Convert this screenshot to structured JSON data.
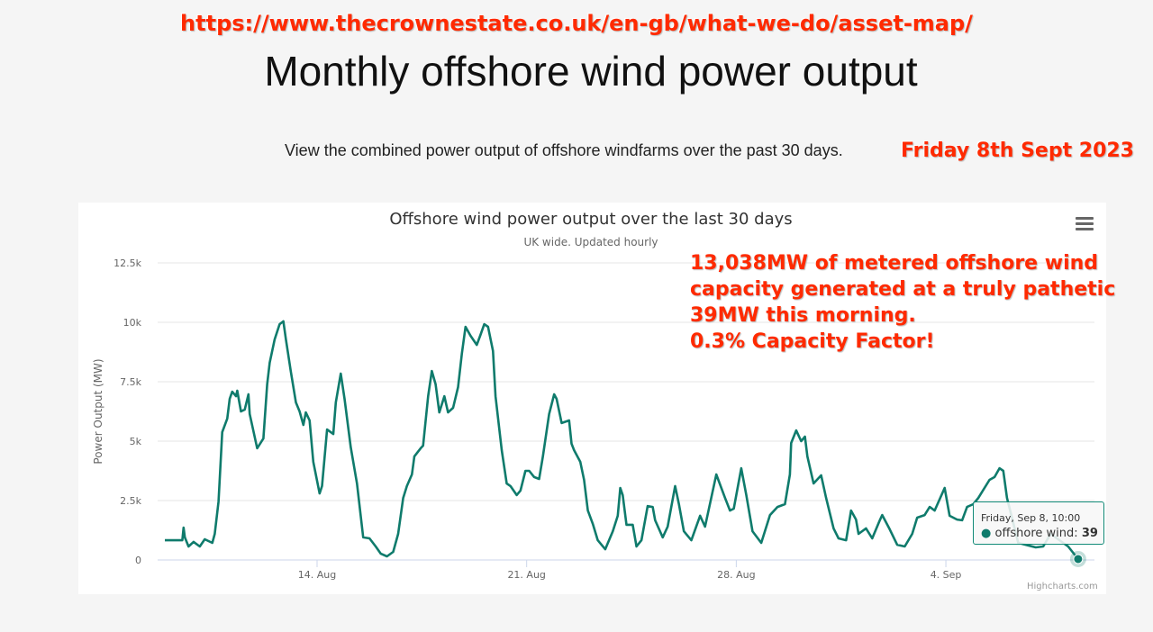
{
  "annotations": {
    "url": "https://www.thecrownestate.co.uk/en-gb/what-we-do/asset-map/",
    "date": "Friday 8th Sept 2023",
    "comment_lines": [
      "13,038MW of metered offshore wind",
      "capacity generated at a truly pathetic",
      "39MW this morning.",
      "0.3% Capacity Factor!"
    ],
    "color": "#ff2a00"
  },
  "page": {
    "heading": "Monthly offshore wind power output",
    "subheading": "View the combined power output of offshore windfarms over the past 30 days."
  },
  "chart": {
    "menu_icon": "hamburger-menu-icon",
    "credits": "Highcharts.com",
    "tooltip": {
      "date": "Friday, Sep 8, 10:00",
      "series": "offshore wind",
      "value": "39"
    }
  },
  "chart_data": {
    "type": "line",
    "title": "Offshore wind power output over the last 30 days",
    "subtitle": "UK wide. Updated hourly",
    "ylabel": "Power Output (MW)",
    "xlabel": "",
    "ylim": [
      0,
      12500
    ],
    "yticks": [
      0,
      2500,
      5000,
      7500,
      10000,
      12500
    ],
    "ytick_labels": [
      "0",
      "2.5k",
      "5k",
      "7.5k",
      "10k",
      "12.5k"
    ],
    "xticks": [
      "2023-08-14T00:00",
      "2023-08-21T00:00",
      "2023-08-28T00:00",
      "2023-09-04T00:00"
    ],
    "xtick_labels": [
      "14. Aug",
      "21. Aug",
      "28. Aug",
      "4. Sep"
    ],
    "grid": true,
    "legend": "none",
    "line_color": "#0f7b6c",
    "series": [
      {
        "name": "offshore wind",
        "points": [
          [
            "2023-08-08T22:00",
            830
          ],
          [
            "2023-08-09T12:00",
            830
          ],
          [
            "2023-08-09T13:00",
            1360
          ],
          [
            "2023-08-09T14:00",
            950
          ],
          [
            "2023-08-09T17:00",
            570
          ],
          [
            "2023-08-09T21:00",
            760
          ],
          [
            "2023-08-10T02:00",
            570
          ],
          [
            "2023-08-10T06:00",
            870
          ],
          [
            "2023-08-10T12:00",
            720
          ],
          [
            "2023-08-10T14:00",
            1100
          ],
          [
            "2023-08-10T17:00",
            2460
          ],
          [
            "2023-08-10T20:00",
            5380
          ],
          [
            "2023-08-11T00:00",
            5950
          ],
          [
            "2023-08-11T02:00",
            6780
          ],
          [
            "2023-08-11T04:00",
            7080
          ],
          [
            "2023-08-11T07:00",
            6890
          ],
          [
            "2023-08-11T08:00",
            7120
          ],
          [
            "2023-08-11T11:00",
            6250
          ],
          [
            "2023-08-11T14:00",
            6330
          ],
          [
            "2023-08-11T17:00",
            6970
          ],
          [
            "2023-08-11T18:00",
            6140
          ],
          [
            "2023-08-12T00:00",
            4700
          ],
          [
            "2023-08-12T05:00",
            5110
          ],
          [
            "2023-08-12T08:00",
            7390
          ],
          [
            "2023-08-12T10:00",
            8300
          ],
          [
            "2023-08-12T14:00",
            9280
          ],
          [
            "2023-08-12T18:00",
            9920
          ],
          [
            "2023-08-12T21:00",
            10040
          ],
          [
            "2023-08-12T23:00",
            9280
          ],
          [
            "2023-08-13T03:00",
            7920
          ],
          [
            "2023-08-13T07:00",
            6630
          ],
          [
            "2023-08-13T10:00",
            6250
          ],
          [
            "2023-08-13T13:00",
            5680
          ],
          [
            "2023-08-13T15:00",
            6210
          ],
          [
            "2023-08-13T18:00",
            5870
          ],
          [
            "2023-08-13T21:00",
            4130
          ],
          [
            "2023-08-14T02:00",
            2800
          ],
          [
            "2023-08-14T04:00",
            3110
          ],
          [
            "2023-08-14T08:00",
            5490
          ],
          [
            "2023-08-14T13:00",
            5300
          ],
          [
            "2023-08-14T15:00",
            6630
          ],
          [
            "2023-08-14T19:00",
            7840
          ],
          [
            "2023-08-14T22:00",
            6780
          ],
          [
            "2023-08-15T03:00",
            4740
          ],
          [
            "2023-08-15T08:00",
            3220
          ],
          [
            "2023-08-15T13:00",
            950
          ],
          [
            "2023-08-15T18:00",
            910
          ],
          [
            "2023-08-15T23:00",
            570
          ],
          [
            "2023-08-16T03:00",
            270
          ],
          [
            "2023-08-16T08:00",
            150
          ],
          [
            "2023-08-16T13:00",
            340
          ],
          [
            "2023-08-16T17:00",
            1100
          ],
          [
            "2023-08-16T21:00",
            2610
          ],
          [
            "2023-08-17T00:00",
            3110
          ],
          [
            "2023-08-17T04:00",
            3600
          ],
          [
            "2023-08-17T06:00",
            4360
          ],
          [
            "2023-08-17T11:00",
            4700
          ],
          [
            "2023-08-17T13:00",
            4810
          ],
          [
            "2023-08-17T17:00",
            6890
          ],
          [
            "2023-08-17T20:00",
            7950
          ],
          [
            "2023-08-17T23:00",
            7390
          ],
          [
            "2023-08-18T02:00",
            6210
          ],
          [
            "2023-08-18T06:00",
            6890
          ],
          [
            "2023-08-18T09:00",
            6210
          ],
          [
            "2023-08-18T13:00",
            6400
          ],
          [
            "2023-08-18T17:00",
            7270
          ],
          [
            "2023-08-18T20:00",
            8670
          ],
          [
            "2023-08-18T23:00",
            9810
          ],
          [
            "2023-08-19T03:00",
            9430
          ],
          [
            "2023-08-19T08:00",
            9050
          ],
          [
            "2023-08-19T11:00",
            9470
          ],
          [
            "2023-08-19T14:00",
            9920
          ],
          [
            "2023-08-19T17:00",
            9810
          ],
          [
            "2023-08-19T21:00",
            8790
          ],
          [
            "2023-08-19T23:00",
            6890
          ],
          [
            "2023-08-20T04:00",
            4620
          ],
          [
            "2023-08-20T08:00",
            3220
          ],
          [
            "2023-08-20T11:00",
            3110
          ],
          [
            "2023-08-20T16:00",
            2730
          ],
          [
            "2023-08-20T19:00",
            2920
          ],
          [
            "2023-08-20T23:00",
            3750
          ],
          [
            "2023-08-21T02:00",
            3750
          ],
          [
            "2023-08-21T06:00",
            3490
          ],
          [
            "2023-08-21T10:00",
            3410
          ],
          [
            "2023-08-21T13:00",
            4360
          ],
          [
            "2023-08-21T18:00",
            6140
          ],
          [
            "2023-08-21T22:00",
            6970
          ],
          [
            "2023-08-22T00:00",
            6780
          ],
          [
            "2023-08-22T04:00",
            5760
          ],
          [
            "2023-08-22T10:00",
            5870
          ],
          [
            "2023-08-22T12:00",
            4890
          ],
          [
            "2023-08-22T14:00",
            4620
          ],
          [
            "2023-08-22T19:00",
            4130
          ],
          [
            "2023-08-22T22:00",
            3370
          ],
          [
            "2023-08-23T01:00",
            2080
          ],
          [
            "2023-08-23T05:00",
            1520
          ],
          [
            "2023-08-23T09:00",
            830
          ],
          [
            "2023-08-23T15:00",
            450
          ],
          [
            "2023-08-23T21:00",
            1210
          ],
          [
            "2023-08-24T01:00",
            1860
          ],
          [
            "2023-08-24T03:00",
            3030
          ],
          [
            "2023-08-24T05:00",
            2730
          ],
          [
            "2023-08-24T08:00",
            1480
          ],
          [
            "2023-08-24T13:00",
            1480
          ],
          [
            "2023-08-24T16:00",
            570
          ],
          [
            "2023-08-24T20:00",
            830
          ],
          [
            "2023-08-25T01:00",
            2270
          ],
          [
            "2023-08-25T05:00",
            2230
          ],
          [
            "2023-08-25T07:00",
            1670
          ],
          [
            "2023-08-25T13:00",
            950
          ],
          [
            "2023-08-25T17:00",
            1400
          ],
          [
            "2023-08-25T23:00",
            3110
          ],
          [
            "2023-08-26T02:00",
            2350
          ],
          [
            "2023-08-26T06:00",
            1210
          ],
          [
            "2023-08-26T12:00",
            830
          ],
          [
            "2023-08-26T19:00",
            1860
          ],
          [
            "2023-08-26T23:00",
            1400
          ],
          [
            "2023-08-27T08:00",
            3600
          ],
          [
            "2023-08-27T15:00",
            2610
          ],
          [
            "2023-08-27T19:00",
            2080
          ],
          [
            "2023-08-27T22:00",
            2160
          ],
          [
            "2023-08-28T04:00",
            3860
          ],
          [
            "2023-08-28T08:00",
            2730
          ],
          [
            "2023-08-28T13:00",
            1210
          ],
          [
            "2023-08-28T20:00",
            720
          ],
          [
            "2023-08-29T03:00",
            1890
          ],
          [
            "2023-08-29T09:00",
            2230
          ],
          [
            "2023-08-29T15:00",
            2350
          ],
          [
            "2023-08-29T19:00",
            3600
          ],
          [
            "2023-08-29T20:00",
            4920
          ],
          [
            "2023-08-30T00:00",
            5450
          ],
          [
            "2023-08-30T04:00",
            5000
          ],
          [
            "2023-08-30T07:00",
            5190
          ],
          [
            "2023-08-30T09:00",
            4360
          ],
          [
            "2023-08-30T14:00",
            3220
          ],
          [
            "2023-08-30T20:00",
            3560
          ],
          [
            "2023-08-31T00:00",
            2610
          ],
          [
            "2023-08-31T06:00",
            1330
          ],
          [
            "2023-08-31T10:00",
            910
          ],
          [
            "2023-08-31T16:00",
            830
          ],
          [
            "2023-08-31T20:00",
            2080
          ],
          [
            "2023-09-01T00:00",
            1700
          ],
          [
            "2023-09-01T02:00",
            1100
          ],
          [
            "2023-09-01T08:00",
            1330
          ],
          [
            "2023-09-01T13:00",
            910
          ],
          [
            "2023-09-01T19:00",
            1670
          ],
          [
            "2023-09-01T21:00",
            1890
          ],
          [
            "2023-09-02T03:00",
            1290
          ],
          [
            "2023-09-02T09:00",
            640
          ],
          [
            "2023-09-02T15:00",
            570
          ],
          [
            "2023-09-02T21:00",
            1100
          ],
          [
            "2023-09-03T01:00",
            1780
          ],
          [
            "2023-09-03T07:00",
            1890
          ],
          [
            "2023-09-03T11:00",
            2230
          ],
          [
            "2023-09-03T15:00",
            2080
          ],
          [
            "2023-09-03T23:00",
            3030
          ],
          [
            "2023-09-04T03:00",
            1860
          ],
          [
            "2023-09-04T09:00",
            1700
          ],
          [
            "2023-09-04T13:00",
            1670
          ],
          [
            "2023-09-04T17:00",
            2230
          ],
          [
            "2023-09-04T22:00",
            2350
          ],
          [
            "2023-09-05T02:00",
            2610
          ],
          [
            "2023-09-05T11:00",
            3370
          ],
          [
            "2023-09-05T15:00",
            3490
          ],
          [
            "2023-09-05T19:00",
            3860
          ],
          [
            "2023-09-05T22:00",
            3750
          ],
          [
            "2023-09-06T01:00",
            2610
          ],
          [
            "2023-09-06T10:00",
            720
          ],
          [
            "2023-09-07T00:00",
            530
          ],
          [
            "2023-09-07T06:00",
            570
          ],
          [
            "2023-09-07T12:00",
            1100
          ],
          [
            "2023-09-08T02:00",
            570
          ],
          [
            "2023-09-08T10:00",
            39
          ]
        ]
      }
    ]
  }
}
